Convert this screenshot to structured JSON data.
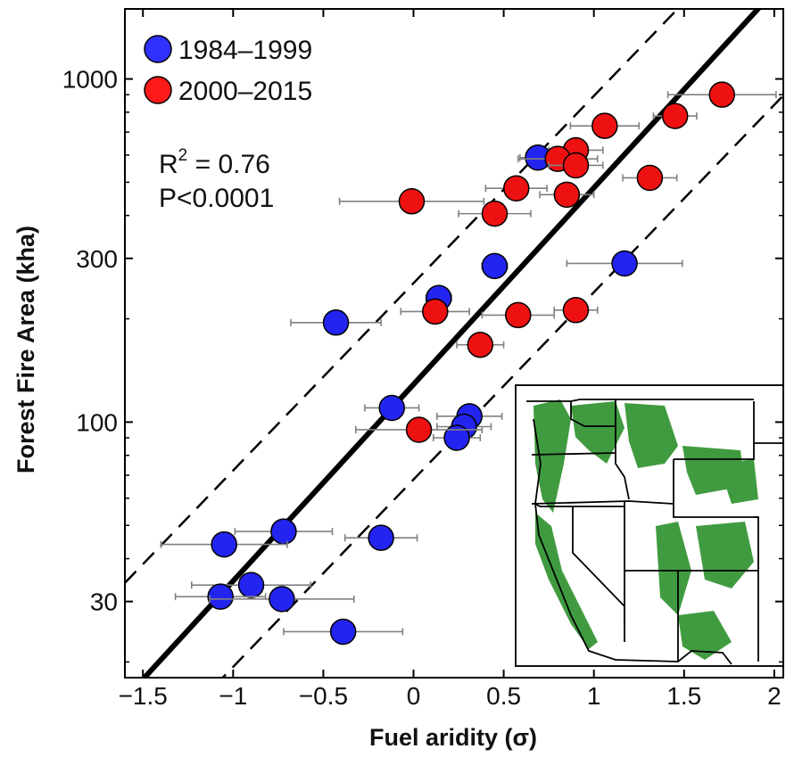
{
  "chart_data": {
    "type": "scatter",
    "xlabel": "Fuel aridity (σ)",
    "ylabel": "Forest Fire Area (kha)",
    "xlim": [
      -1.6,
      2.05
    ],
    "ylim": [
      18,
      1600
    ],
    "yscale": "log",
    "xticks": [
      -1.5,
      -1,
      -0.5,
      0,
      0.5,
      1,
      1.5,
      2
    ],
    "xtick_labels": [
      "−1.5",
      "−1",
      "−0.5",
      "0",
      "0.5",
      "1",
      "1.5",
      "2"
    ],
    "yticks": [
      30,
      100,
      300,
      1000
    ],
    "ytick_labels": [
      "30",
      "100",
      "300",
      "1000"
    ],
    "grid": false,
    "legend_position": "top-left",
    "annotations": {
      "r2_label": "R",
      "r2_sup": "2",
      "r2_value": " = 0.76",
      "p_value": "P<0.0001"
    },
    "series": [
      {
        "name": "1984–1999",
        "color": "#0000ee",
        "points": [
          {
            "x": 0.69,
            "y": 590,
            "xerr": 0.1
          },
          {
            "x": 0.45,
            "y": 285,
            "xerr": 0.07
          },
          {
            "x": 1.17,
            "y": 290,
            "xerr": 0.32
          },
          {
            "x": 0.14,
            "y": 230,
            "xerr": 0.07
          },
          {
            "x": -0.43,
            "y": 195,
            "xerr": 0.25
          },
          {
            "x": -0.12,
            "y": 110,
            "xerr": 0.15
          },
          {
            "x": 0.31,
            "y": 104,
            "xerr": 0.18
          },
          {
            "x": 0.28,
            "y": 97,
            "xerr": 0.15
          },
          {
            "x": 0.24,
            "y": 90,
            "xerr": 0.13
          },
          {
            "x": -0.72,
            "y": 48,
            "xerr": 0.27
          },
          {
            "x": -1.05,
            "y": 44,
            "xerr": 0.35
          },
          {
            "x": -0.18,
            "y": 46,
            "xerr": 0.2
          },
          {
            "x": -0.9,
            "y": 33.5,
            "xerr": 0.33
          },
          {
            "x": -1.07,
            "y": 31,
            "xerr": 0.25
          },
          {
            "x": -0.73,
            "y": 30.5,
            "xerr": 0.4
          },
          {
            "x": -0.39,
            "y": 24.5,
            "xerr": 0.33
          }
        ]
      },
      {
        "name": "2000–2015",
        "color": "#ee0000",
        "points": [
          {
            "x": 1.71,
            "y": 900,
            "xerr": 0.3
          },
          {
            "x": 1.45,
            "y": 780,
            "xerr": 0.12
          },
          {
            "x": 1.06,
            "y": 730,
            "xerr": 0.19
          },
          {
            "x": 0.9,
            "y": 620,
            "xerr": 0.15
          },
          {
            "x": 0.8,
            "y": 585,
            "xerr": 0.22
          },
          {
            "x": 0.9,
            "y": 560,
            "xerr": 0.15
          },
          {
            "x": 1.31,
            "y": 515,
            "xerr": 0.15
          },
          {
            "x": 0.57,
            "y": 480,
            "xerr": 0.17
          },
          {
            "x": 0.85,
            "y": 460,
            "xerr": 0.15
          },
          {
            "x": -0.01,
            "y": 440,
            "xerr": 0.4
          },
          {
            "x": 0.45,
            "y": 405,
            "xerr": 0.2
          },
          {
            "x": 0.12,
            "y": 210,
            "xerr": 0.19
          },
          {
            "x": 0.58,
            "y": 205,
            "xerr": 0.2
          },
          {
            "x": 0.9,
            "y": 212,
            "xerr": 0.12
          },
          {
            "x": 0.37,
            "y": 168,
            "xerr": 0.13
          },
          {
            "x": 0.03,
            "y": 95,
            "xerr": 0.35
          }
        ]
      }
    ],
    "fit_lines": [
      {
        "role": "regression",
        "style": "solid",
        "x": [
          -1.6,
          2.05
        ],
        "y": [
          15.6,
          1925
        ]
      },
      {
        "role": "upper-bound",
        "style": "dashed",
        "x": [
          -1.6,
          2.05
        ],
        "y": [
          34,
          3340
        ]
      },
      {
        "role": "lower-bound",
        "style": "dashed",
        "x": [
          -1.6,
          2.05
        ],
        "y": [
          9.1,
          895
        ]
      }
    ],
    "inset": {
      "type": "map",
      "region": "Western United States",
      "fill_color": "#1f8a1f"
    }
  }
}
